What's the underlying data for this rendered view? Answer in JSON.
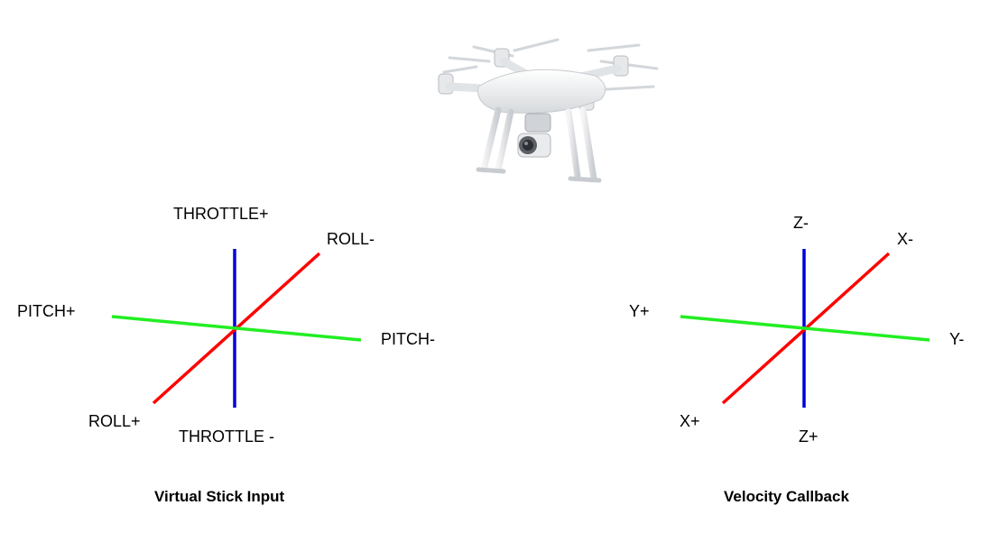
{
  "diagrams": [
    {
      "caption": "Virtual Stick Input",
      "labels": {
        "vertical_top": "THROTTLE+",
        "vertical_bottom": "THROTTLE -",
        "diagonal_top": "ROLL-",
        "diagonal_bottom": "ROLL+",
        "horizontal_left": "PITCH+",
        "horizontal_right": "PITCH-"
      }
    },
    {
      "caption": "Velocity Callback",
      "labels": {
        "vertical_top": "Z-",
        "vertical_bottom": "Z+",
        "diagonal_top": "X-",
        "diagonal_bottom": "X+",
        "horizontal_left": "Y+",
        "horizontal_right": "Y-"
      }
    }
  ],
  "colors": {
    "vertical_axis": "#0000d8",
    "diagonal_axis": "#ff0000",
    "horizontal_axis": "#22ee22"
  }
}
